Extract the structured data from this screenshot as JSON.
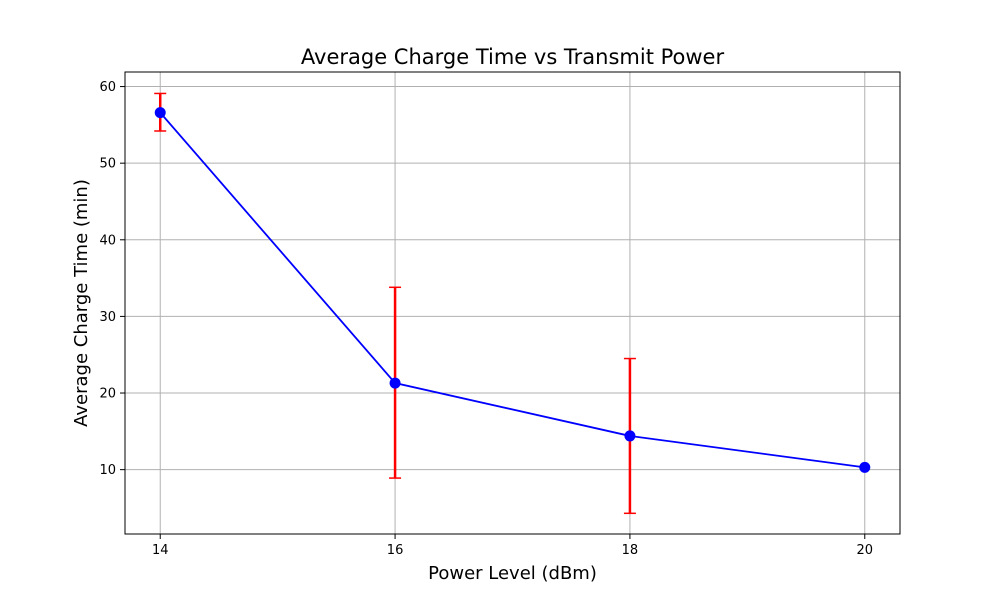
{
  "chart_data": {
    "type": "line",
    "title": "Average Charge Time vs Transmit Power",
    "xlabel": "Power Level (dBm)",
    "ylabel": "Average Charge Time (min)",
    "x": [
      14,
      16,
      18,
      20
    ],
    "x_ticks": [
      14,
      16,
      18,
      20
    ],
    "y_ticks": [
      10,
      20,
      30,
      40,
      50,
      60
    ],
    "xlim": [
      13.7,
      20.3
    ],
    "ylim": [
      1.6,
      61.9
    ],
    "grid": true,
    "series": [
      {
        "values": [
          56.6,
          21.3,
          14.4,
          10.3
        ],
        "error_low": [
          54.2,
          8.9,
          4.3,
          10.3
        ],
        "error_high": [
          59.1,
          33.8,
          24.5,
          10.3
        ],
        "color": "#0000ff",
        "marker": "circle",
        "error_color": "#ff0000"
      }
    ],
    "colors": {
      "grid": "#b0b0b0",
      "axes": "#000000"
    }
  }
}
